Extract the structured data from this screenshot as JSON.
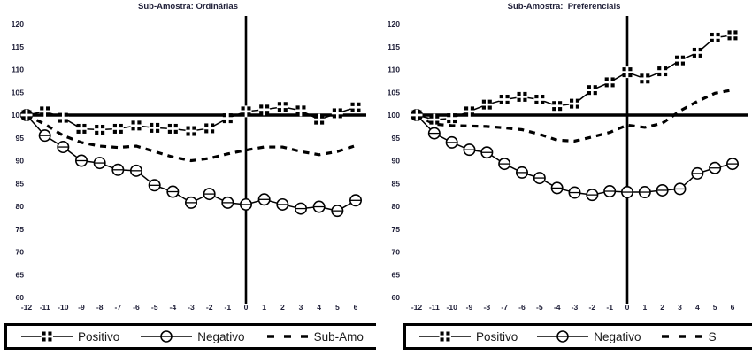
{
  "colors": {
    "line": "#000000",
    "background": "#ffffff",
    "label_text": "#1f1f38"
  },
  "charts": [
    {
      "title": "Sub-Amostra: Ordinárias",
      "legend": {
        "items": [
          {
            "label": "Positivo"
          },
          {
            "label": "Negativo"
          },
          {
            "label": "Sub-Amo"
          }
        ]
      }
    },
    {
      "title": "Sub-Amostra:  Preferenciais",
      "legend": {
        "items": [
          {
            "label": "Positivo"
          },
          {
            "label": "Negativo"
          },
          {
            "label": "S"
          }
        ]
      }
    }
  ],
  "chart_data": [
    {
      "type": "line",
      "title": "Sub-Amostra: Ordinárias",
      "xlabel": "",
      "ylabel": "",
      "x": [
        -12,
        -11,
        -10,
        -9,
        -8,
        -7,
        -6,
        -5,
        -4,
        -3,
        -2,
        -1,
        0,
        1,
        2,
        3,
        4,
        5,
        6
      ],
      "ylim": [
        60,
        120
      ],
      "yticks": [
        60,
        65,
        70,
        75,
        80,
        85,
        90,
        95,
        100,
        105,
        110,
        115,
        120
      ],
      "baseline": 100,
      "event_line_x": 0,
      "grid": false,
      "legend_position": "bottom",
      "series": [
        {
          "name": "Positivo",
          "marker": "square-plus",
          "line_style": "solid",
          "values": [
            100,
            100.8,
            99.4,
            97,
            96.8,
            97,
            97.7,
            97.2,
            97,
            96.5,
            97.1,
            99.3,
            100.8,
            101.2,
            101.8,
            101,
            99,
            100.4,
            101.7
          ]
        },
        {
          "name": "Negativo",
          "marker": "circle",
          "line_style": "solid",
          "values": [
            100,
            95.5,
            93,
            90,
            89.5,
            88,
            87.8,
            84.6,
            83.2,
            80.8,
            82.7,
            80.8,
            80.4,
            81.5,
            80.4,
            79.5,
            79.9,
            79,
            81.3
          ]
        },
        {
          "name": "Sub-Amostra",
          "marker": "none",
          "line_style": "dashed",
          "values": [
            100,
            98,
            95.5,
            94,
            93.2,
            92.9,
            93.2,
            92,
            90.8,
            90,
            90.5,
            91.5,
            92.3,
            93,
            93,
            92,
            91.3,
            92,
            93.3
          ]
        }
      ]
    },
    {
      "type": "line",
      "title": "Sub-Amostra:  Preferenciais",
      "xlabel": "",
      "ylabel": "",
      "x": [
        -12,
        -11,
        -10,
        -9,
        -8,
        -7,
        -6,
        -5,
        -4,
        -3,
        -2,
        -1,
        0,
        1,
        2,
        3,
        4,
        5,
        6
      ],
      "ylim": [
        60,
        120
      ],
      "yticks": [
        60,
        65,
        70,
        75,
        80,
        85,
        90,
        95,
        100,
        105,
        110,
        115,
        120
      ],
      "baseline": 100,
      "event_line_x": 0,
      "grid": false,
      "legend_position": "bottom",
      "series": [
        {
          "name": "Positivo",
          "marker": "square-plus",
          "line_style": "solid",
          "values": [
            100,
            99,
            99.3,
            100.8,
            102.3,
            103.4,
            104,
            103.4,
            102,
            102.5,
            105.5,
            107.2,
            109.4,
            108,
            109.6,
            112,
            113.7,
            117,
            117.5
          ]
        },
        {
          "name": "Negativo",
          "marker": "circle",
          "line_style": "solid",
          "values": [
            100,
            96,
            94,
            92.4,
            91.8,
            89.3,
            87.4,
            86.2,
            84,
            83,
            82.5,
            83.3,
            83.1,
            83.1,
            83.5,
            83.8,
            87.2,
            88.4,
            89.3
          ]
        },
        {
          "name": "Sub-Amostra",
          "marker": "none",
          "line_style": "dashed",
          "values": [
            100,
            98,
            97.7,
            97.6,
            97.5,
            97.2,
            96.8,
            95.8,
            94.5,
            94.3,
            95.2,
            96.2,
            97.8,
            97.3,
            98.2,
            100.9,
            103,
            104.8,
            105.5
          ]
        }
      ]
    }
  ]
}
